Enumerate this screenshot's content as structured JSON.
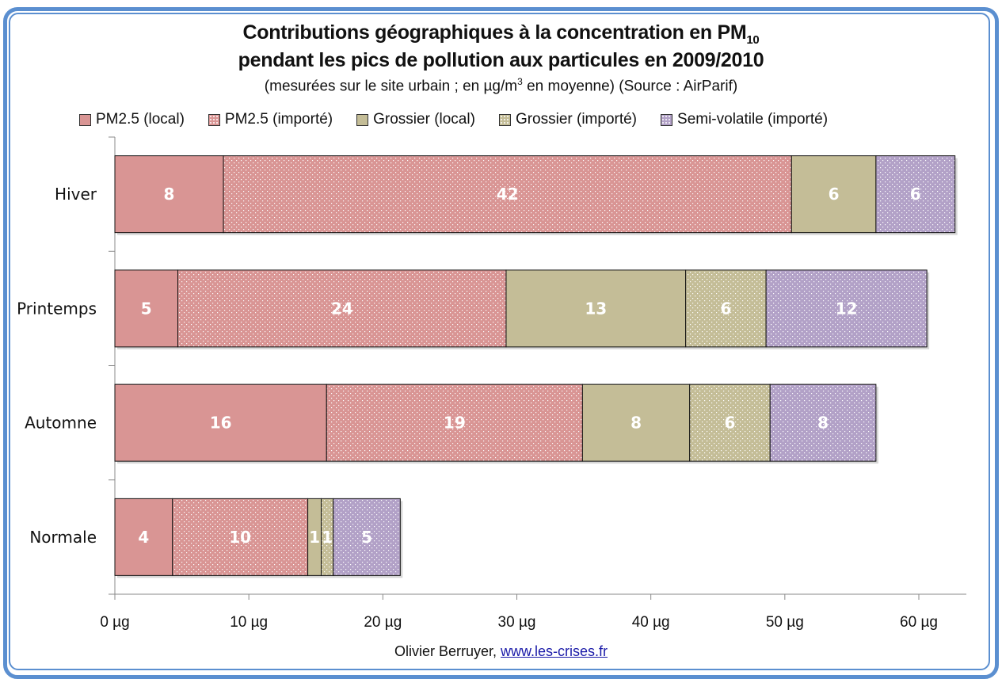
{
  "chart_data": {
    "type": "bar",
    "orientation": "horizontal",
    "stacked": true,
    "title_line1": "Contributions géographiques à la concentration en PM",
    "title_line1_subscript": "10",
    "title_line2": "pendant les pics de pollution aux particules en 2009/2010",
    "subtitle_before_sup": "(mesurées sur le site urbain ; en µg/m",
    "subtitle_sup": "3",
    "subtitle_after_sup": " en moyenne) (Source : AirParif)",
    "categories": [
      "Hiver",
      "Printemps",
      "Automne",
      "Normale"
    ],
    "series": [
      {
        "name": "PM2.5 (local)",
        "color": "#d99594",
        "dotted": false,
        "values": [
          8.1,
          4.7,
          15.8,
          4.3
        ],
        "labels": [
          "8",
          "5",
          "16",
          "4"
        ]
      },
      {
        "name": "PM2.5 (importé)",
        "color": "#d99594",
        "dotted": true,
        "values": [
          42.4,
          24.5,
          19.1,
          10.1
        ],
        "labels": [
          "42",
          "24",
          "19",
          "10"
        ]
      },
      {
        "name": "Grossier (local)",
        "color": "#c4bd97",
        "dotted": false,
        "values": [
          6.3,
          13.4,
          8.0,
          1.0
        ],
        "labels": [
          "6",
          "13",
          "8",
          "1"
        ]
      },
      {
        "name": "Grossier (importé)",
        "color": "#c4bd97",
        "dotted": true,
        "values": [
          0,
          6.0,
          6.0,
          0.9
        ],
        "labels": [
          "",
          "6",
          "6",
          "1"
        ]
      },
      {
        "name": "Semi-volatile (importé)",
        "color": "#b2a1c7",
        "dotted": true,
        "values": [
          5.9,
          12.0,
          7.9,
          5.0
        ],
        "labels": [
          "6",
          "12",
          "8",
          "5"
        ]
      }
    ],
    "xlim": [
      0,
      63
    ],
    "xticks": [
      0,
      10,
      20,
      30,
      40,
      50,
      60
    ],
    "xtick_labels": [
      "0 µg",
      "10 µg",
      "20 µg",
      "30 µg",
      "40 µg",
      "50 µg",
      "60 µg"
    ],
    "xlabel": "",
    "ylabel": "",
    "grid": false,
    "legend_position": "top"
  },
  "credit": {
    "author": "Olivier Berruyer, ",
    "link": "www.les-crises.fr"
  }
}
